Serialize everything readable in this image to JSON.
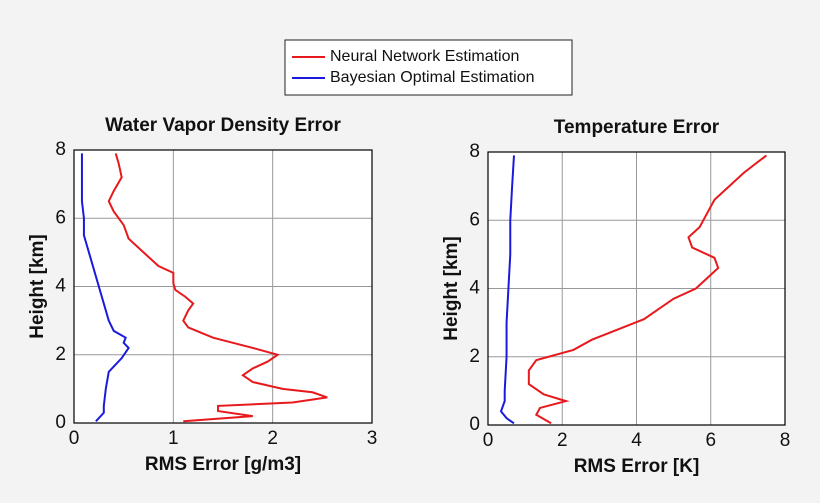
{
  "chart_data": [
    {
      "type": "line",
      "title": "Water Vapor Density Error",
      "xlabel": "RMS Error [g/m3]",
      "ylabel": "Height [km]",
      "xlim": [
        0,
        3
      ],
      "xticks": [
        0,
        1,
        2,
        3
      ],
      "ylim": [
        0,
        8
      ],
      "yticks": [
        0,
        2,
        4,
        6,
        8
      ],
      "grid": true,
      "legend": "top",
      "series": [
        {
          "name": "Neural Network Estimation",
          "color": "#e8191c",
          "values": [
            1.1,
            1.8,
            1.45,
            1.45,
            2.2,
            2.55,
            2.4,
            2.1,
            1.8,
            1.7,
            1.8,
            1.95,
            2.05,
            1.8,
            1.4,
            1.15,
            1.1,
            1.15,
            1.2,
            1.12,
            1.02,
            1.0,
            1.0,
            0.85,
            0.7,
            0.55,
            0.5,
            0.4,
            0.35,
            0.4,
            0.48,
            0.45,
            0.42
          ],
          "heights": [
            0.05,
            0.2,
            0.35,
            0.5,
            0.6,
            0.75,
            0.9,
            1.0,
            1.2,
            1.4,
            1.6,
            1.8,
            2.0,
            2.2,
            2.5,
            2.8,
            3.0,
            3.3,
            3.5,
            3.7,
            3.9,
            4.1,
            4.4,
            4.6,
            5.0,
            5.4,
            5.8,
            6.2,
            6.5,
            6.8,
            7.2,
            7.6,
            7.9
          ]
        },
        {
          "name": "Bayesian Optimal Estimation",
          "color": "#1a1adc",
          "values": [
            0.22,
            0.3,
            0.3,
            0.32,
            0.35,
            0.48,
            0.55,
            0.5,
            0.52,
            0.4,
            0.35,
            0.3,
            0.25,
            0.2,
            0.15,
            0.1,
            0.1,
            0.08,
            0.08,
            0.08,
            0.08
          ],
          "heights": [
            0.05,
            0.3,
            0.5,
            1.0,
            1.5,
            1.9,
            2.2,
            2.35,
            2.5,
            2.7,
            3.0,
            3.5,
            4.0,
            4.5,
            5.0,
            5.5,
            6.0,
            6.5,
            7.0,
            7.5,
            7.9
          ]
        }
      ]
    },
    {
      "type": "line",
      "title": "Temperature Error",
      "xlabel": "RMS Error [K]",
      "ylabel": "Height [km]",
      "xlim": [
        0,
        8
      ],
      "xticks": [
        0,
        2,
        4,
        6,
        8
      ],
      "ylim": [
        0,
        8
      ],
      "yticks": [
        0,
        2,
        4,
        6,
        8
      ],
      "grid": true,
      "series": [
        {
          "color": "#e8191c",
          "values": [
            1.7,
            1.3,
            1.4,
            2.1,
            1.5,
            1.1,
            1.1,
            1.3,
            2.3,
            2.8,
            3.5,
            4.2,
            4.6,
            5.0,
            5.6,
            5.9,
            6.2,
            6.1,
            5.5,
            5.4,
            5.7,
            5.9,
            6.1,
            6.5,
            6.9,
            7.5
          ],
          "heights": [
            0.05,
            0.3,
            0.5,
            0.7,
            0.9,
            1.2,
            1.6,
            1.9,
            2.2,
            2.5,
            2.8,
            3.1,
            3.4,
            3.7,
            4.0,
            4.3,
            4.6,
            4.9,
            5.2,
            5.5,
            5.8,
            6.2,
            6.6,
            7.0,
            7.4,
            7.9
          ]
        },
        {
          "color": "#1a1adc",
          "values": [
            0.7,
            0.5,
            0.35,
            0.45,
            0.45,
            0.5,
            0.5,
            0.55,
            0.6,
            0.6,
            0.65,
            0.7
          ],
          "heights": [
            0.05,
            0.2,
            0.4,
            0.7,
            1.0,
            2.0,
            3.0,
            4.0,
            5.0,
            6.0,
            7.0,
            7.9
          ]
        }
      ]
    }
  ]
}
